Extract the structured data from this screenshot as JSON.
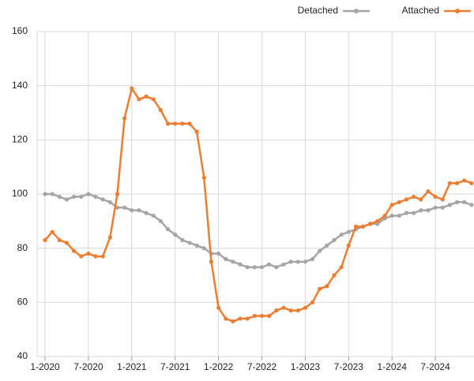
{
  "chart_data": {
    "type": "line",
    "categories": [
      "1-2020",
      null,
      null,
      null,
      null,
      null,
      "7-2020",
      null,
      null,
      null,
      null,
      null,
      "1-2021",
      null,
      null,
      null,
      null,
      null,
      "7-2021",
      null,
      null,
      null,
      null,
      null,
      "1-2022",
      null,
      null,
      null,
      null,
      null,
      "7-2022",
      null,
      null,
      null,
      null,
      null,
      "1-2023",
      null,
      null,
      null,
      null,
      null,
      "7-2023",
      null,
      null,
      null,
      null,
      null,
      "1-2024",
      null,
      null,
      null,
      null,
      null,
      "7-2024",
      null,
      null,
      null,
      null,
      null
    ],
    "series": [
      {
        "name": "Detached",
        "color": "#a5a5a5",
        "values": [
          100,
          100,
          99,
          98,
          99,
          99,
          100,
          99,
          98,
          97,
          95,
          95,
          94,
          94,
          93,
          92,
          90,
          87,
          85,
          83,
          82,
          81,
          80,
          78,
          78,
          76,
          75,
          74,
          73,
          73,
          73,
          74,
          73,
          74,
          75,
          75,
          75,
          76,
          79,
          81,
          83,
          85,
          86,
          87,
          88,
          89,
          89,
          91,
          92,
          92,
          93,
          93,
          94,
          94,
          95,
          95,
          96,
          97,
          97,
          96
        ]
      },
      {
        "name": "Attached",
        "color": "#ed7d31",
        "values": [
          83,
          86,
          83,
          82,
          79,
          77,
          78,
          77,
          77,
          84,
          100,
          128,
          139,
          135,
          136,
          135,
          131,
          126,
          126,
          126,
          126,
          123,
          106,
          75,
          58,
          54,
          53,
          54,
          54,
          55,
          55,
          55,
          57,
          58,
          57,
          57,
          58,
          60,
          65,
          66,
          70,
          73,
          81,
          88,
          88,
          89,
          90,
          92,
          96,
          97,
          98,
          99,
          98,
          101,
          99,
          98,
          104,
          104,
          105,
          104
        ]
      }
    ],
    "ylim": [
      40,
      160
    ],
    "yticks": [
      40,
      60,
      80,
      100,
      120,
      140,
      160
    ],
    "grid": true,
    "legend": "top-right"
  }
}
